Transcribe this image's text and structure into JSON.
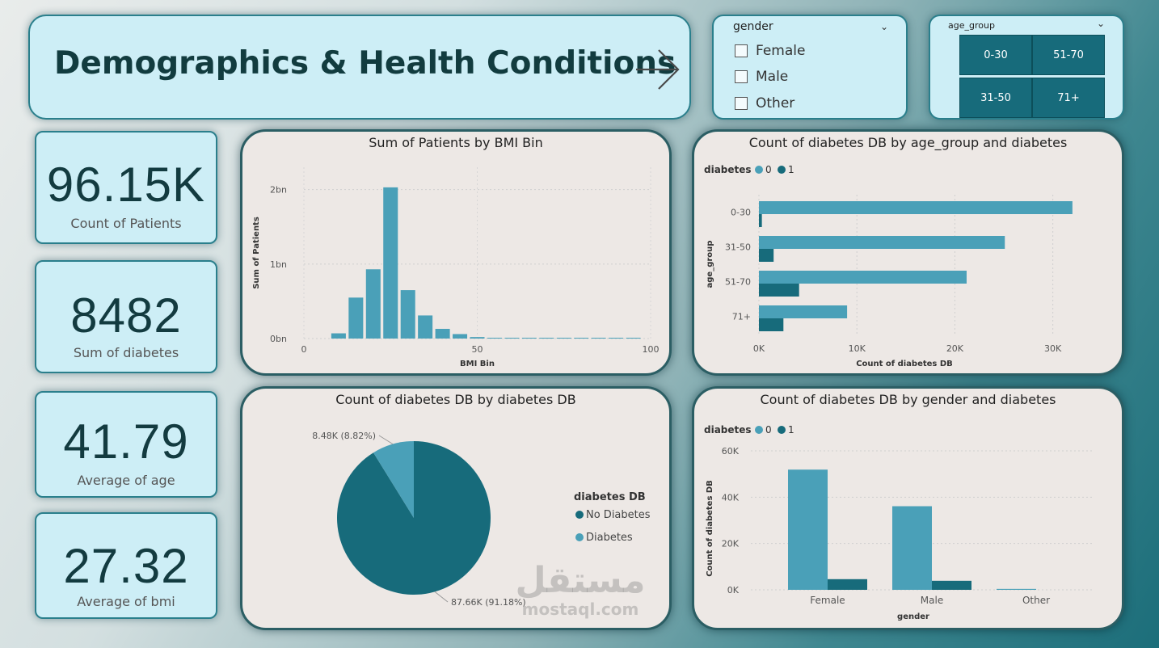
{
  "header": {
    "title": "Demographics & Health Conditions"
  },
  "slicers": {
    "gender": {
      "title": "gender",
      "options": [
        "Female",
        "Male",
        "Other"
      ]
    },
    "age_group": {
      "title": "age_group",
      "tiles": [
        "0-30",
        "51-70",
        "31-50",
        "71+"
      ]
    }
  },
  "kpis": [
    {
      "value": "96.15K",
      "label": "Count of Patients"
    },
    {
      "value": "8482",
      "label": "Sum of diabetes"
    },
    {
      "value": "41.79",
      "label": "Average of age"
    },
    {
      "value": "27.32",
      "label": "Average of bmi"
    }
  ],
  "colors": {
    "series0": "#4aa0b8",
    "series1": "#176b7b",
    "pie_dark": "#176b7b",
    "pie_light": "#4aa0b8"
  },
  "chart_data": [
    {
      "type": "bar",
      "title": "Sum of Patients by BMI Bin",
      "xlabel": "BMI Bin",
      "ylabel": "Sum of Patients",
      "x": [
        10,
        15,
        20,
        25,
        30,
        35,
        40,
        45,
        50,
        55,
        60,
        65,
        70,
        75,
        80,
        85,
        90,
        95
      ],
      "values": [
        0.07,
        0.55,
        0.93,
        2.03,
        0.65,
        0.31,
        0.13,
        0.06,
        0.02,
        0.01,
        0.006,
        0.005,
        0.004,
        0.003,
        0.003,
        0.002,
        0.002,
        0.002
      ],
      "value_unit": "bn",
      "xlim": [
        0,
        100
      ],
      "x_ticks": [
        "0",
        "50",
        "100"
      ],
      "ylim": [
        0,
        2.3
      ],
      "y_ticks": [
        "0bn",
        "1bn",
        "2bn"
      ],
      "grid": true
    },
    {
      "type": "bar",
      "orientation": "horizontal",
      "title": "Count of diabetes DB by age_group and diabetes",
      "legend_title": "diabetes",
      "categories": [
        "0-30",
        "31-50",
        "51-70",
        "71+"
      ],
      "series": [
        {
          "name": "0",
          "values": [
            32000,
            25100,
            21200,
            9000
          ]
        },
        {
          "name": "1",
          "values": [
            300,
            1500,
            4100,
            2500
          ]
        }
      ],
      "xlabel": "Count of diabetes DB",
      "ylabel": "age_group",
      "xlim": [
        0,
        33000
      ],
      "x_ticks": [
        "0K",
        "10K",
        "20K",
        "30K"
      ],
      "legend": "top-left",
      "grid": true
    },
    {
      "type": "pie",
      "title": "Count of diabetes DB by diabetes DB",
      "legend_title": "diabetes DB",
      "slices": [
        {
          "label": "No Diabetes",
          "value": 87660,
          "data_label": "87.66K (91.18%)"
        },
        {
          "label": "Diabetes",
          "value": 8480,
          "data_label": "8.48K (8.82%)"
        }
      ],
      "legend": "right"
    },
    {
      "type": "bar",
      "title": "Count of diabetes DB by gender and diabetes",
      "legend_title": "diabetes",
      "categories": [
        "Female",
        "Male",
        "Other"
      ],
      "series": [
        {
          "name": "0",
          "values": [
            51900,
            36100,
            400
          ]
        },
        {
          "name": "1",
          "values": [
            4600,
            3900,
            0
          ]
        }
      ],
      "xlabel": "gender",
      "ylabel": "Count of diabetes DB",
      "ylim": [
        0,
        60000
      ],
      "y_ticks": [
        "0K",
        "20K",
        "40K",
        "60K"
      ],
      "legend": "top-left",
      "grid": true
    }
  ],
  "watermark": {
    "arabic": "مستقل",
    "latin": "mostaql.com"
  }
}
